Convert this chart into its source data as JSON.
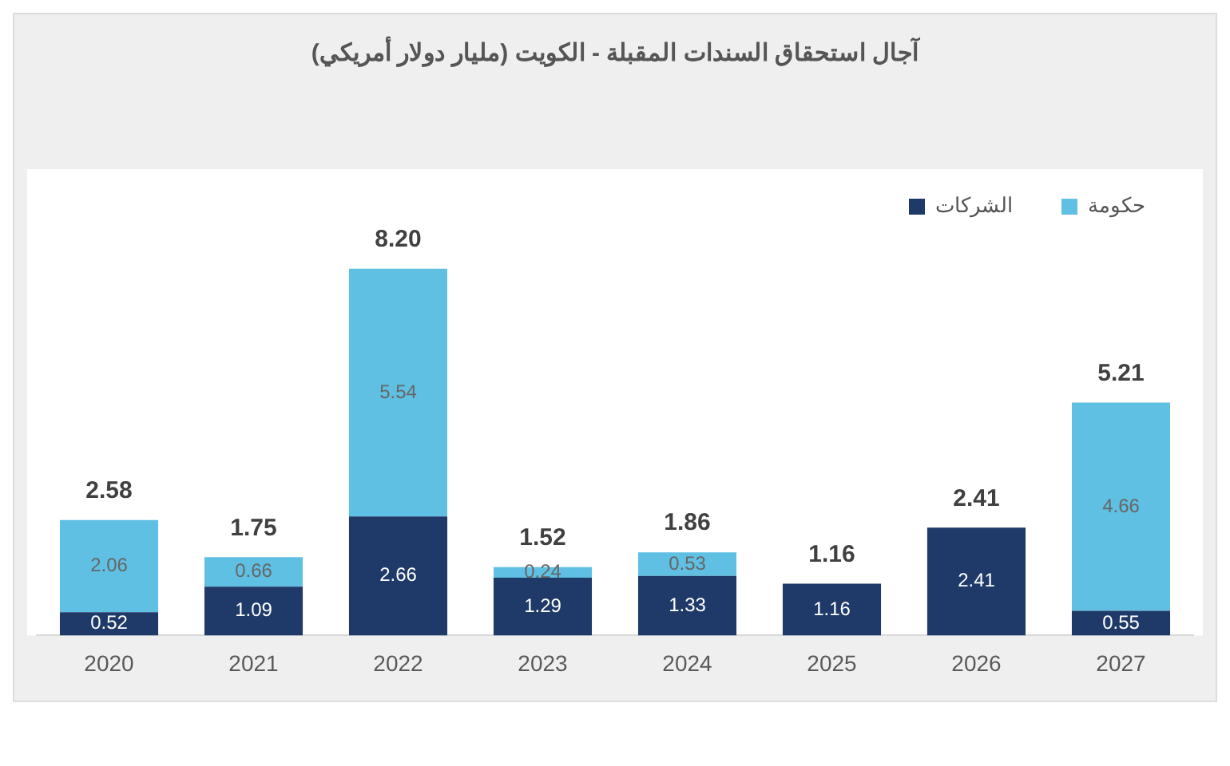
{
  "chart_data": {
    "type": "bar",
    "title": "آجال استحقاق السندات المقبلة - الكويت (مليار دولار أمريكي)",
    "categories": [
      "2020",
      "2021",
      "2022",
      "2023",
      "2024",
      "2025",
      "2026",
      "2027"
    ],
    "stacked": true,
    "series": [
      {
        "name": "الشركات",
        "color": "#1f3a68",
        "values": [
          0.52,
          1.09,
          2.66,
          1.29,
          1.33,
          1.16,
          2.41,
          0.55
        ]
      },
      {
        "name": "حكومة",
        "color": "#5fc0e3",
        "values": [
          2.06,
          0.66,
          5.54,
          0.24,
          0.53,
          null,
          null,
          4.66
        ]
      }
    ],
    "data_labels": true,
    "totals": [
      "2.58",
      "1.75",
      "8.20",
      "1.52",
      "1.86",
      "1.16",
      "2.41",
      "5.21"
    ],
    "legend": "top right",
    "grid": false,
    "tick_labels": "x"
  }
}
